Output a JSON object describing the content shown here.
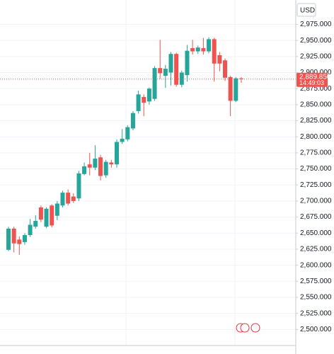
{
  "chart_data": {
    "type": "candlestick",
    "currency": "USD",
    "ylim": [
      2475,
      3013
    ],
    "yticks": [
      {
        "value": 2500,
        "label": "2,500.000"
      },
      {
        "value": 2525,
        "label": "2,525.000"
      },
      {
        "value": 2550,
        "label": "2,550.000"
      },
      {
        "value": 2575,
        "label": "2,575.000"
      },
      {
        "value": 2600,
        "label": "2,600.000"
      },
      {
        "value": 2625,
        "label": "2,625.000"
      },
      {
        "value": 2650,
        "label": "2,650.000"
      },
      {
        "value": 2675,
        "label": "2,675.000"
      },
      {
        "value": 2700,
        "label": "2,700.000"
      },
      {
        "value": 2725,
        "label": "2,725.000"
      },
      {
        "value": 2750,
        "label": "2,750.000"
      },
      {
        "value": 2775,
        "label": "2,775.000"
      },
      {
        "value": 2800,
        "label": "2,800.000"
      },
      {
        "value": 2825,
        "label": "2,825.000"
      },
      {
        "value": 2850,
        "label": "2,850.000"
      },
      {
        "value": 2875,
        "label": "2,875.000"
      },
      {
        "value": 2900,
        "label": "2,900.000"
      },
      {
        "value": 2925,
        "label": "2,925.000"
      },
      {
        "value": 2950,
        "label": "2,950.000"
      },
      {
        "value": 2975,
        "label": "2,975.000"
      }
    ],
    "up_color": "#26a69a",
    "down_color": "#ef5350",
    "last_price": {
      "value": 2889.85,
      "label": "2,889.850"
    },
    "countdown": "14:49:03",
    "series": {
      "open": [
        2624,
        2657,
        2640,
        2636,
        2647,
        2660,
        2690,
        2660,
        2693,
        2677,
        2693,
        2713,
        2707,
        2704,
        2742,
        2757,
        2752,
        2768,
        2740,
        2760,
        2757,
        2792,
        2796,
        2813,
        2840,
        2862,
        2855,
        2859,
        2907,
        2895,
        2900,
        2929,
        2881,
        2896,
        2938,
        2933,
        2938,
        2933,
        2952,
        2927,
        2919,
        2893,
        2856,
        2891
      ],
      "high": [
        2660,
        2660,
        2645,
        2650,
        2672,
        2678,
        2693,
        2690,
        2695,
        2700,
        2716,
        2718,
        2712,
        2747,
        2760,
        2775,
        2787,
        2772,
        2764,
        2764,
        2796,
        2812,
        2818,
        2840,
        2872,
        2866,
        2877,
        2910,
        2951,
        2912,
        2932,
        2931,
        2903,
        2943,
        2951,
        2942,
        2954,
        2955,
        2954,
        2932,
        2922,
        2895,
        2893,
        2893
      ],
      "low": [
        2622,
        2620,
        2616,
        2632,
        2644,
        2657,
        2667,
        2658,
        2659,
        2670,
        2690,
        2693,
        2697,
        2700,
        2740,
        2740,
        2748,
        2732,
        2736,
        2752,
        2752,
        2789,
        2793,
        2810,
        2836,
        2832,
        2850,
        2856,
        2890,
        2876,
        2880,
        2878,
        2877,
        2886,
        2928,
        2929,
        2928,
        2930,
        2886,
        2902,
        2887,
        2832,
        2854,
        2884
      ],
      "close": [
        2657,
        2634,
        2633,
        2647,
        2663,
        2669,
        2671,
        2688,
        2662,
        2696,
        2713,
        2696,
        2700,
        2743,
        2754,
        2752,
        2766,
        2739,
        2761,
        2757,
        2792,
        2797,
        2815,
        2837,
        2866,
        2853,
        2875,
        2907,
        2899,
        2906,
        2929,
        2881,
        2900,
        2934,
        2933,
        2939,
        2933,
        2952,
        2914,
        2914,
        2892,
        2856,
        2891,
        2889.85
      ]
    }
  }
}
